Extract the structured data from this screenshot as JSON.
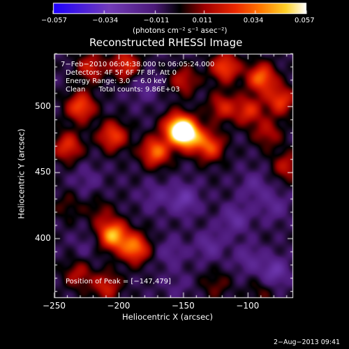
{
  "chart_data": {
    "type": "heatmap",
    "title": "Reconstructed RHESSI Image",
    "xlabel": "Heliocentric X (arcsec)",
    "ylabel": "Heliocentric Y (arcsec)",
    "xlim": [
      -250,
      -65
    ],
    "ylim": [
      355,
      540
    ],
    "x_ticks": [
      -250,
      -200,
      -150,
      -100
    ],
    "x_tick_labels": [
      "−250",
      "−200",
      "−150",
      "−100"
    ],
    "y_ticks": [
      400,
      450,
      500
    ],
    "y_tick_labels": [
      "400",
      "450",
      "500"
    ],
    "colorbar": {
      "vmin": -0.057,
      "vmax": 0.057,
      "ticks": [
        -0.057,
        -0.034,
        -0.011,
        0.011,
        0.034,
        0.057
      ],
      "tick_labels": [
        "−0.057",
        "−0.034",
        "−0.011",
        "0.011",
        "0.034",
        "0.057"
      ],
      "units": "(photons cm⁻² s⁻¹ asec⁻²)"
    },
    "annotations": {
      "time_range": "7−Feb−2010 06:04:38.000 to 06:05:24.000",
      "detectors": "Detectors: 4F 5F 6F 7F 8F, Att 0",
      "energy": "Energy Range: 3.0 − 6.0 keV",
      "method": "Clean      Total counts: 9.86E+03",
      "peak": "Position of Peak = [−147,479]"
    },
    "peak": [
      -147,
      479
    ],
    "sources": [
      {
        "x": -147,
        "y": 479,
        "value": 0.057
      },
      {
        "x": -155,
        "y": 484,
        "value": 0.05
      },
      {
        "x": -172,
        "y": 466,
        "value": 0.04
      },
      {
        "x": -130,
        "y": 470,
        "value": 0.035
      },
      {
        "x": -205,
        "y": 478,
        "value": 0.034
      },
      {
        "x": -230,
        "y": 500,
        "value": 0.036
      },
      {
        "x": -240,
        "y": 470,
        "value": 0.03
      },
      {
        "x": -222,
        "y": 530,
        "value": 0.025
      },
      {
        "x": -195,
        "y": 532,
        "value": 0.03
      },
      {
        "x": -150,
        "y": 520,
        "value": 0.022
      },
      {
        "x": -118,
        "y": 530,
        "value": 0.035
      },
      {
        "x": -90,
        "y": 522,
        "value": 0.04
      },
      {
        "x": -75,
        "y": 505,
        "value": 0.032
      },
      {
        "x": -100,
        "y": 497,
        "value": 0.028
      },
      {
        "x": -120,
        "y": 500,
        "value": 0.025
      },
      {
        "x": -85,
        "y": 480,
        "value": 0.02
      },
      {
        "x": -70,
        "y": 455,
        "value": 0.022
      },
      {
        "x": -205,
        "y": 403,
        "value": 0.05
      },
      {
        "x": -188,
        "y": 393,
        "value": 0.042
      },
      {
        "x": -215,
        "y": 420,
        "value": 0.012
      },
      {
        "x": -232,
        "y": 373,
        "value": 0.02
      },
      {
        "x": -210,
        "y": 364,
        "value": 0.025
      },
      {
        "x": -240,
        "y": 425,
        "value": 0.01
      },
      {
        "x": -125,
        "y": 365,
        "value": 0.012
      },
      {
        "x": -90,
        "y": 360,
        "value": 0.01
      },
      {
        "x": -172,
        "y": 432,
        "value": -0.01
      },
      {
        "x": -150,
        "y": 430,
        "value": -0.02
      },
      {
        "x": -110,
        "y": 415,
        "value": -0.016
      },
      {
        "x": -95,
        "y": 440,
        "value": -0.012
      },
      {
        "x": -80,
        "y": 425,
        "value": -0.012
      },
      {
        "x": -160,
        "y": 390,
        "value": -0.01
      },
      {
        "x": -130,
        "y": 395,
        "value": -0.014
      },
      {
        "x": -100,
        "y": 385,
        "value": -0.012
      },
      {
        "x": -80,
        "y": 375,
        "value": -0.02
      },
      {
        "x": -225,
        "y": 445,
        "value": -0.008
      },
      {
        "x": -180,
        "y": 515,
        "value": -0.01
      },
      {
        "x": -225,
        "y": 395,
        "value": -0.006
      },
      {
        "x": -155,
        "y": 365,
        "value": -0.006
      }
    ]
  },
  "footer": {
    "timestamp": "2−Aug−2013 09:41"
  }
}
